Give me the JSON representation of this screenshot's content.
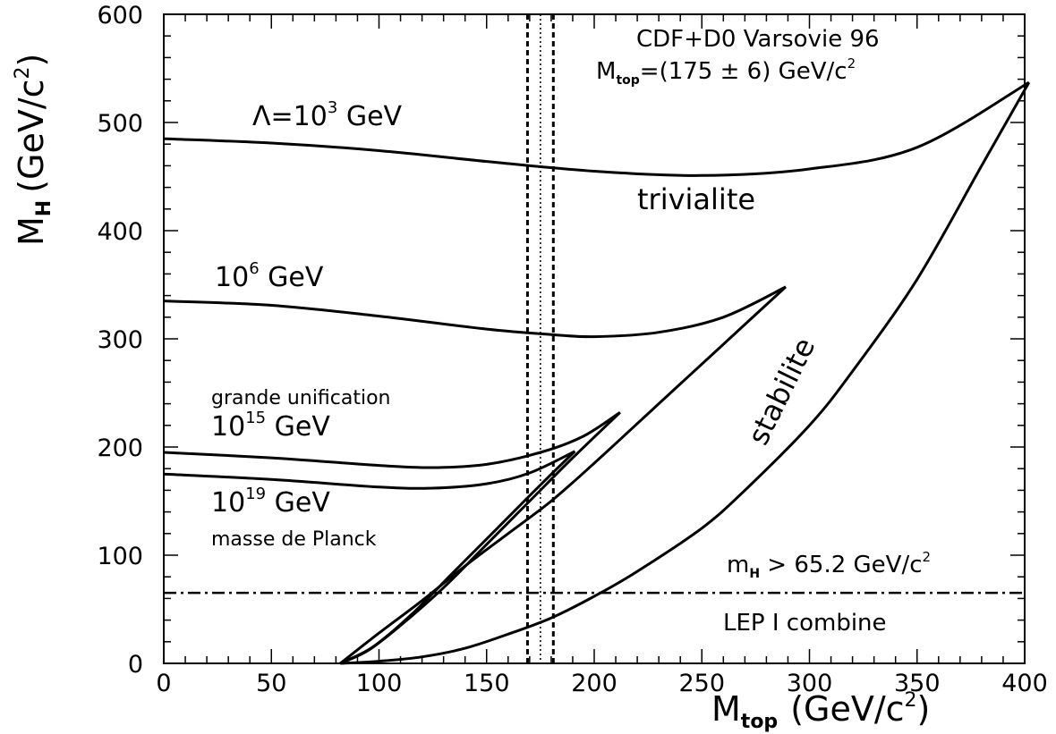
{
  "chart_data": {
    "type": "line",
    "title": "",
    "xlabel": "M_top (GeV/c²)",
    "ylabel": "M_H (GeV/c²)",
    "xlabel_main": "M",
    "xlabel_sub": "top",
    "xlabel_unit": "(GeV/c",
    "xlabel_unit_sup": "2",
    "xlabel_unit_close": ")",
    "ylabel_main": "M",
    "ylabel_sub": "H",
    "ylabel_unit": "(GeV/c",
    "ylabel_unit_sup": "2",
    "ylabel_unit_close": ")",
    "xlim": [
      0,
      400
    ],
    "ylim": [
      0,
      600
    ],
    "xticks": [
      0,
      50,
      100,
      150,
      200,
      250,
      300,
      350,
      400
    ],
    "yticks": [
      0,
      100,
      200,
      300,
      400,
      500,
      600
    ],
    "grid": false,
    "series": [
      {
        "label_main": "Λ=10",
        "label_sup": "3",
        "label_tail": " GeV",
        "upper": [
          [
            0,
            485
          ],
          [
            50,
            481
          ],
          [
            100,
            474
          ],
          [
            150,
            464
          ],
          [
            200,
            455
          ],
          [
            250,
            451
          ],
          [
            300,
            457
          ],
          [
            350,
            477
          ],
          [
            402,
            537
          ]
        ],
        "lower": [
          [
            402,
            537
          ],
          [
            380,
            460
          ],
          [
            350,
            355
          ],
          [
            320,
            270
          ],
          [
            300,
            220
          ],
          [
            270,
            160
          ],
          [
            250,
            125
          ],
          [
            220,
            85
          ],
          [
            200,
            62
          ],
          [
            180,
            42
          ],
          [
            160,
            27
          ],
          [
            140,
            14
          ],
          [
            120,
            6
          ],
          [
            100,
            2
          ],
          [
            82,
            0
          ]
        ]
      },
      {
        "label_main": "10",
        "label_sup": "6",
        "label_tail": " GeV",
        "upper": [
          [
            0,
            335
          ],
          [
            50,
            331
          ],
          [
            100,
            321
          ],
          [
            150,
            309
          ],
          [
            180,
            304
          ],
          [
            200,
            302
          ],
          [
            230,
            306
          ],
          [
            260,
            320
          ],
          [
            289,
            348
          ]
        ],
        "lower": [
          [
            289,
            348
          ],
          [
            260,
            295
          ],
          [
            230,
            240
          ],
          [
            200,
            185
          ],
          [
            180,
            150
          ],
          [
            160,
            120
          ],
          [
            140,
            90
          ],
          [
            120,
            58
          ],
          [
            100,
            28
          ],
          [
            82,
            0
          ]
        ]
      },
      {
        "label_main": "10",
        "label_sup": "15",
        "label_tail": " GeV",
        "upper": [
          [
            0,
            195
          ],
          [
            50,
            190
          ],
          [
            100,
            183
          ],
          [
            125,
            181
          ],
          [
            150,
            184
          ],
          [
            175,
            195
          ],
          [
            195,
            210
          ],
          [
            212,
            232
          ]
        ],
        "lower": [
          [
            212,
            232
          ],
          [
            190,
            190
          ],
          [
            170,
            150
          ],
          [
            150,
            110
          ],
          [
            130,
            70
          ],
          [
            110,
            35
          ],
          [
            95,
            12
          ],
          [
            82,
            0
          ]
        ]
      },
      {
        "label_main": "10",
        "label_sup": "19",
        "label_tail": " GeV",
        "upper": [
          [
            0,
            175
          ],
          [
            50,
            170
          ],
          [
            100,
            163
          ],
          [
            125,
            162
          ],
          [
            150,
            166
          ],
          [
            170,
            176
          ],
          [
            191,
            196
          ]
        ],
        "lower": [
          [
            191,
            196
          ],
          [
            175,
            165
          ],
          [
            155,
            125
          ],
          [
            135,
            85
          ],
          [
            115,
            45
          ],
          [
            97,
            15
          ],
          [
            82,
            0
          ]
        ]
      }
    ],
    "mtop_band": {
      "central": 175,
      "low": 169,
      "high": 181
    },
    "lep_limit": {
      "value": 65.2
    },
    "annotations": {
      "cdf_line1": "CDF+D0 Varsovie 96",
      "cdf_line2_main": "M",
      "cdf_line2_sub": "top",
      "cdf_line2_rest": "=(175 ± 6) GeV/c",
      "cdf_line2_sup": "2",
      "trivialite": "trivialite",
      "stabilite": "stabilite",
      "grande_unification": "grande unification",
      "masse_planck": "masse de Planck",
      "lep_limit_main": "m",
      "lep_limit_sub": "H",
      "lep_limit_rest": " > 65.2 GeV/c",
      "lep_limit_sup": "2",
      "lep_combine": "LEP I combine"
    }
  }
}
